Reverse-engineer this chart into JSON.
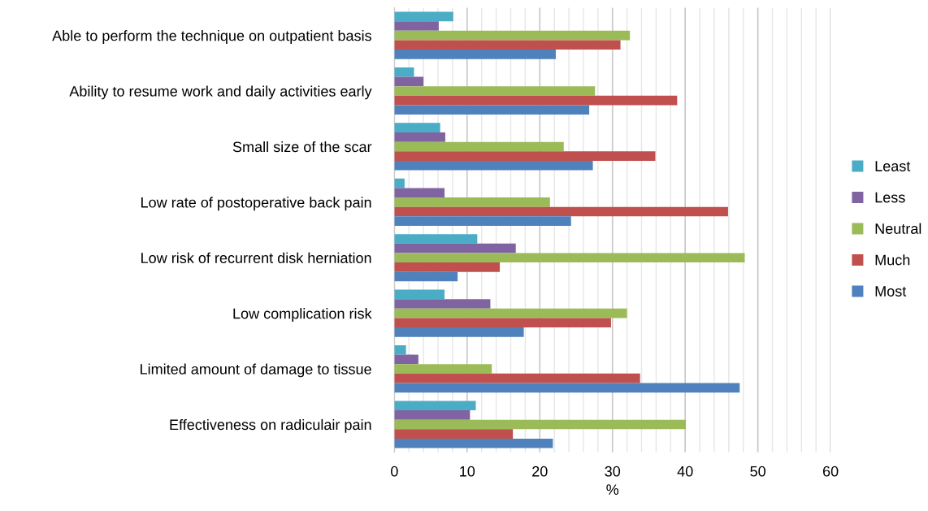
{
  "chart_data": {
    "type": "bar",
    "orientation": "horizontal",
    "xlabel": "%",
    "categories": [
      "Able to perform the technique on outpatient basis",
      "Ability to resume work and daily activities early",
      "Small size of the scar",
      "Low rate of postoperative back pain",
      "Low risk of recurrent disk herniation",
      "Low complication risk",
      "Limited amount of damage to tissue",
      "Effectiveness on radiculair pain"
    ],
    "series": [
      {
        "name": "Least",
        "color": "#4bacc6",
        "values": [
          8.1,
          2.7,
          6.3,
          1.4,
          11.4,
          6.9,
          1.6,
          11.2
        ]
      },
      {
        "name": "Less",
        "color": "#8064a2",
        "values": [
          6.1,
          4.0,
          7.0,
          6.9,
          16.7,
          13.2,
          3.3,
          10.4
        ]
      },
      {
        "name": "Neutral",
        "color": "#9bbb59",
        "values": [
          32.4,
          27.6,
          23.3,
          21.4,
          48.2,
          32.0,
          13.4,
          40.1
        ]
      },
      {
        "name": "Much",
        "color": "#c0504d",
        "values": [
          31.1,
          38.9,
          35.9,
          45.9,
          14.5,
          29.8,
          33.8,
          16.3
        ]
      },
      {
        "name": "Most",
        "color": "#4f81bd",
        "values": [
          22.2,
          26.8,
          27.3,
          24.3,
          8.7,
          17.8,
          47.5,
          21.8
        ]
      }
    ],
    "xlim": [
      0,
      60
    ],
    "xticks": [
      0,
      10,
      20,
      30,
      40,
      50,
      60
    ],
    "grid": "x",
    "legend": "right"
  }
}
